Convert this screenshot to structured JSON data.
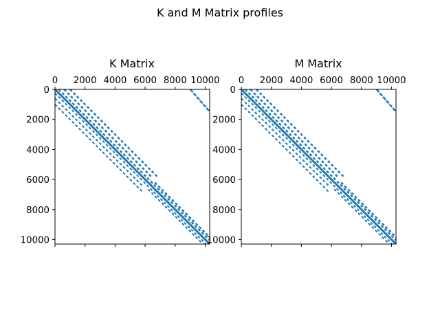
{
  "figure": {
    "title": "K and M Matrix profiles"
  },
  "colors": {
    "marker": "#1f77b4",
    "axes": "#000000",
    "background": "#ffffff"
  },
  "chart_data": [
    {
      "type": "scatter",
      "title": "K Matrix",
      "matrix_size": 10300,
      "xlim": [
        0,
        10300
      ],
      "ylim": [
        10300,
        0
      ],
      "x_ticks": [
        0,
        2000,
        4000,
        6000,
        8000,
        10000
      ],
      "y_ticks": [
        0,
        2000,
        4000,
        6000,
        8000,
        10000
      ],
      "x_tick_labels": [
        "0",
        "2000",
        "4000",
        "6000",
        "8000",
        "10000"
      ],
      "y_tick_labels": [
        "0",
        "2000",
        "4000",
        "6000",
        "8000",
        "10000"
      ],
      "x_axis_position": "top",
      "grid": false,
      "diagonal_bands": [
        {
          "row_start": 0,
          "row_end": 10300,
          "offset": 0
        },
        {
          "row_start": 0,
          "row_end": 10300,
          "offset": 250
        },
        {
          "row_start": 0,
          "row_end": 5800,
          "offset": 600
        },
        {
          "row_start": 0,
          "row_end": 5800,
          "offset": 1000
        },
        {
          "row_start": 6200,
          "row_end": 10200,
          "offset": 450
        }
      ],
      "off_diagonal_blocks": [
        {
          "row_start": 0,
          "row_end": 1500,
          "col_start": 9000,
          "col_end": 10300
        }
      ]
    },
    {
      "type": "scatter",
      "title": "M Matrix",
      "matrix_size": 10300,
      "xlim": [
        0,
        10300
      ],
      "ylim": [
        10300,
        0
      ],
      "x_ticks": [
        0,
        2000,
        4000,
        6000,
        8000,
        10000
      ],
      "y_ticks": [
        0,
        2000,
        4000,
        6000,
        8000,
        10000
      ],
      "x_tick_labels": [
        "0",
        "2000",
        "4000",
        "6000",
        "8000",
        "10000"
      ],
      "y_tick_labels": [
        "0",
        "2000",
        "4000",
        "6000",
        "8000",
        "10000"
      ],
      "x_axis_position": "top",
      "grid": false,
      "diagonal_bands": [
        {
          "row_start": 0,
          "row_end": 10300,
          "offset": 0
        },
        {
          "row_start": 0,
          "row_end": 10300,
          "offset": 250
        },
        {
          "row_start": 0,
          "row_end": 5800,
          "offset": 600
        },
        {
          "row_start": 0,
          "row_end": 5800,
          "offset": 1000
        },
        {
          "row_start": 6200,
          "row_end": 10200,
          "offset": 450
        }
      ],
      "off_diagonal_blocks": [
        {
          "row_start": 0,
          "row_end": 1500,
          "col_start": 9000,
          "col_end": 10300
        }
      ]
    }
  ]
}
